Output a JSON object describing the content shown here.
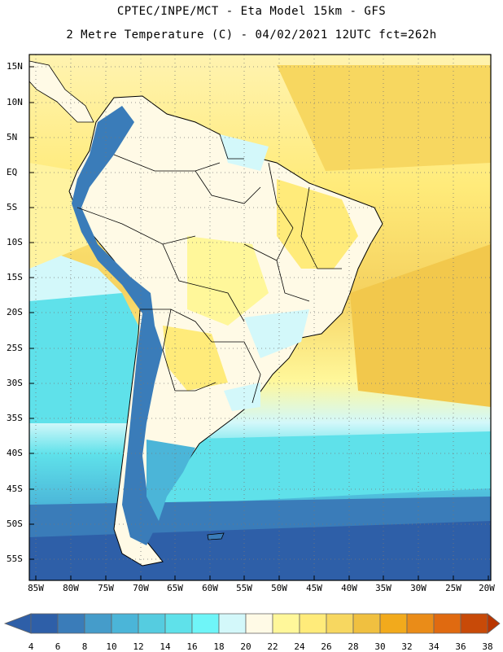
{
  "header": {
    "line1": "CPTEC/INPE/MCT  -  Eta Model 15km  -  GFS",
    "line2": "2 Metre Temperature (C) - 04/02/2021 12UTC fct=262h"
  },
  "axes": {
    "lat_labels": [
      "15N",
      "10N",
      "5N",
      "EQ",
      "5S",
      "10S",
      "15S",
      "20S",
      "25S",
      "30S",
      "35S",
      "40S",
      "45S",
      "50S",
      "55S"
    ],
    "lon_labels": [
      "85W",
      "80W",
      "75W",
      "70W",
      "65W",
      "60W",
      "55W",
      "50W",
      "45W",
      "40W",
      "35W",
      "30W",
      "25W",
      "20W"
    ]
  },
  "colorbar": {
    "labels": [
      "4",
      "6",
      "8",
      "10",
      "12",
      "14",
      "16",
      "18",
      "20",
      "22",
      "24",
      "26",
      "28",
      "30",
      "32",
      "34",
      "36",
      "38"
    ],
    "colors": [
      "#2e5fa8",
      "#3a7cb9",
      "#459cca",
      "#4bb5d8",
      "#55cce0",
      "#5fe1ea",
      "#6ff5f8",
      "#d3f8fa",
      "#fffae6",
      "#fff79a",
      "#ffeb7a",
      "#f7d760",
      "#f0c040",
      "#f2aa1c",
      "#ea8c18",
      "#e06a10",
      "#c84a08",
      "#b83500"
    ]
  },
  "map_colors": {
    "ocean_cold": "#2e5fa8",
    "ocean_mid": "#4bb5d8",
    "ocean_cyan": "#5fe1ea",
    "ocean_light": "#d3f8fa",
    "ocean_warm": "#fff79a",
    "ocean_hot": "#f7d760",
    "land_cool": "#fffae6",
    "land_warm": "#ffeb7a",
    "andes": "#3a7cb9"
  }
}
